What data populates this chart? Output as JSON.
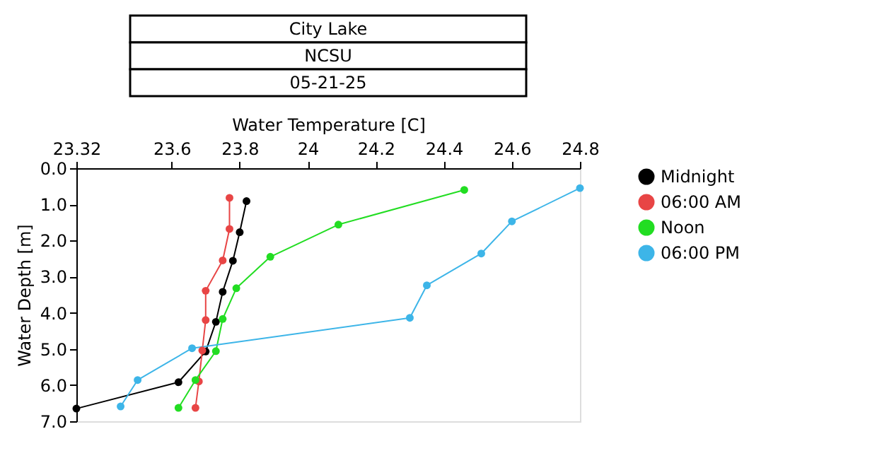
{
  "chart_data": {
    "type": "line",
    "title": "City Lake",
    "subtitle": "NCSU",
    "annotations": [
      "05-21-25"
    ],
    "xlabel": "Water Temperature [C]",
    "ylabel": "Water Depth [m]",
    "xlim": [
      23.32,
      24.8
    ],
    "xticks": [
      23.32,
      23.6,
      23.8,
      24,
      24.2,
      24.4,
      24.6,
      24.8
    ],
    "ylim": [
      7.0,
      0.0
    ],
    "yticks": [
      {
        "value": 0,
        "label": "0.0"
      },
      {
        "value": 1,
        "label": "1.0"
      },
      {
        "value": 2,
        "label": "2.0"
      },
      {
        "value": 3,
        "label": "3.0"
      },
      {
        "value": 4,
        "label": "4.0"
      },
      {
        "value": 5,
        "label": "5.0"
      },
      {
        "value": 6,
        "label": "6.0"
      },
      {
        "value": 7,
        "label": "7.0"
      }
    ],
    "grid": false,
    "legend": "top right",
    "marker": "circle",
    "line_style": "solid",
    "series": [
      {
        "name": "Midnight",
        "color": "#000000",
        "x": [
          23.82,
          23.8,
          23.78,
          23.75,
          23.73,
          23.7,
          23.62,
          23.32
        ],
        "values": [
          0.91,
          1.77,
          2.56,
          3.42,
          4.25,
          5.07,
          5.92,
          6.65
        ]
      },
      {
        "name": "06:00 AM",
        "color": "#e84545",
        "x": [
          23.77,
          23.77,
          23.75,
          23.7,
          23.7,
          23.69,
          23.68,
          23.67
        ],
        "values": [
          0.82,
          1.68,
          2.55,
          3.39,
          4.2,
          5.04,
          5.9,
          6.63
        ]
      },
      {
        "name": "Noon",
        "color": "#22dd22",
        "x": [
          24.46,
          24.09,
          23.89,
          23.79,
          23.75,
          23.73,
          23.67,
          23.62
        ],
        "values": [
          0.6,
          1.56,
          2.45,
          3.32,
          4.17,
          5.06,
          5.86,
          6.63
        ]
      },
      {
        "name": "06:00 PM",
        "color": "#3db5e8",
        "x": [
          24.8,
          24.6,
          24.51,
          24.35,
          24.3,
          23.66,
          23.5,
          23.45
        ],
        "values": [
          0.55,
          1.47,
          2.36,
          3.24,
          4.14,
          4.98,
          5.86,
          6.59
        ]
      }
    ]
  }
}
